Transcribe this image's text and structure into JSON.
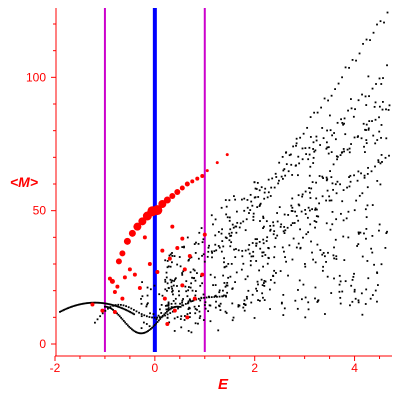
{
  "chart_data": {
    "type": "scatter",
    "title": "",
    "xlabel": "E",
    "ylabel": "<M>",
    "xlim": [
      -2,
      4.75
    ],
    "ylim": [
      -3,
      126
    ],
    "x_ticks": [
      {
        "value": -2,
        "label": "-2"
      },
      {
        "value": 0,
        "label": "0"
      },
      {
        "value": 2,
        "label": "2"
      },
      {
        "value": 4,
        "label": "4"
      }
    ],
    "y_ticks": [
      {
        "value": 0,
        "label": "0"
      },
      {
        "value": 50,
        "label": "50"
      },
      {
        "value": 100,
        "label": "100"
      }
    ],
    "vertical_lines": [
      {
        "x": -1,
        "color": "#cc00cc"
      },
      {
        "x": 0,
        "color": "#0000ff"
      },
      {
        "x": 1,
        "color": "#cc00cc"
      }
    ],
    "colors": {
      "axes": "#ff0000",
      "points_black": "#000000",
      "points_red": "#ff0000"
    },
    "series": [
      {
        "color": "#ff0000",
        "points": [
          [
            -1.25,
            14.8,
            2
          ],
          [
            -1.05,
            12.5,
            2
          ],
          [
            -0.85,
            23.5,
            2.5
          ],
          [
            -0.8,
            19.5,
            2
          ],
          [
            -0.72,
            31,
            3
          ],
          [
            -0.65,
            34,
            3
          ],
          [
            -0.55,
            38.5,
            3.5
          ],
          [
            -0.45,
            41.5,
            3.5
          ],
          [
            -0.35,
            44,
            4
          ],
          [
            -0.25,
            46,
            4
          ],
          [
            -0.15,
            48,
            4.5
          ],
          [
            -0.05,
            49.8,
            5
          ],
          [
            0.05,
            50.2,
            5
          ],
          [
            0.15,
            52.5,
            4
          ],
          [
            0.25,
            54,
            3.5
          ],
          [
            0.35,
            55.5,
            3
          ],
          [
            0.45,
            57,
            3
          ],
          [
            0.55,
            58.5,
            2.5
          ],
          [
            0.65,
            60,
            2.5
          ],
          [
            0.75,
            61,
            2
          ],
          [
            0.85,
            62,
            2
          ],
          [
            0.95,
            63,
            2
          ],
          [
            1.05,
            65,
            1.5
          ],
          [
            1.25,
            68,
            1.5
          ],
          [
            1.45,
            71,
            1.5
          ],
          [
            -0.9,
            24.5,
            2
          ],
          [
            -0.75,
            21.5,
            2
          ],
          [
            -0.6,
            25,
            2
          ],
          [
            -0.5,
            28,
            2
          ],
          [
            -0.4,
            26,
            2
          ],
          [
            -0.2,
            40,
            2
          ],
          [
            -0.1,
            30,
            2
          ],
          [
            0.05,
            27,
            2
          ],
          [
            0.15,
            35,
            2
          ],
          [
            0.3,
            32,
            2
          ],
          [
            0.35,
            44,
            2
          ],
          [
            0.45,
            36,
            2
          ],
          [
            0.55,
            39.5,
            2
          ],
          [
            0.6,
            28,
            2
          ],
          [
            0.7,
            33,
            2
          ],
          [
            0.95,
            26,
            2
          ],
          [
            1.0,
            41,
            2
          ],
          [
            -0.8,
            12,
            2
          ],
          [
            -0.3,
            21,
            2
          ],
          [
            0.2,
            17,
            2
          ],
          [
            0.4,
            12.5,
            2
          ],
          [
            0.55,
            22,
            2
          ],
          [
            0.8,
            17,
            2
          ],
          [
            -0.65,
            17,
            2
          ],
          [
            0.25,
            7.5,
            2
          ],
          [
            0.65,
            10,
            2
          ]
        ]
      }
    ]
  }
}
